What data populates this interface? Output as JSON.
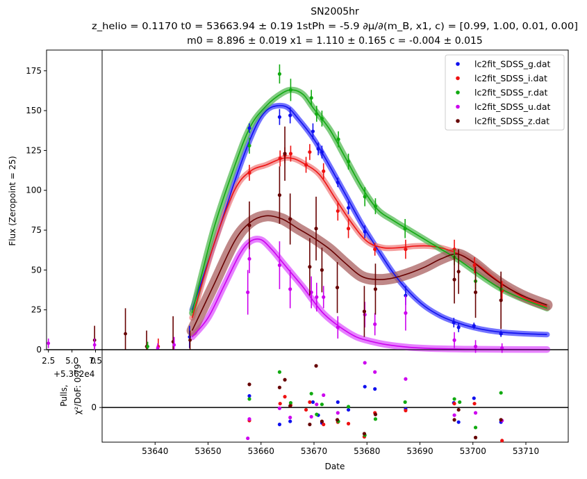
{
  "chart_data": {
    "type": "scatter",
    "title": {
      "line1": "SN2005hr",
      "line2": "z_helio = 0.1170  t0 = 53663.94 ± 0.19  1stPh = -5.9  ∂μ/∂(m_B, x1, c) = [0.99, 1.00, 0.01, 0.00]",
      "line3": "m0 = 8.896 ± 0.019  x1 = 1.110 ± 0.165  c = -0.004 ± 0.015"
    },
    "xlabel": "Date",
    "ylabel": "Flux (Zeropoint = 25)",
    "pulls_ylabel": "Pulls,",
    "pulls_ylabel2": "χ²/DoF: 0.79",
    "xlim": [
      53630,
      53718
    ],
    "ylim": [
      0,
      188
    ],
    "pulls_ylim": [
      -4.5,
      7.5
    ],
    "x_ticks": [
      53640,
      53650,
      53660,
      53670,
      53680,
      53690,
      53700,
      53710
    ],
    "y_ticks": [
      0,
      25,
      50,
      75,
      100,
      125,
      150,
      175
    ],
    "pulls_y_ticks": [
      0
    ],
    "inset": {
      "xlim": [
        2.3,
        8.2
      ],
      "x_ticks": [
        2.5,
        5.0,
        7.5
      ],
      "x_tick_labels": [
        "2.5",
        "5.0",
        "7.5"
      ],
      "offset_label": "+5.362e4",
      "pulls_tick_label": "0"
    },
    "legend_position": "top-right",
    "series": [
      {
        "name": "lc2fit_SDSS_g.dat",
        "color": "#1010ee",
        "band": "#4444ff",
        "model": [
          [
            53647,
            25
          ],
          [
            53652,
            75
          ],
          [
            53656,
            115
          ],
          [
            53659,
            140
          ],
          [
            53661,
            150
          ],
          [
            53663,
            153
          ],
          [
            53665,
            152
          ],
          [
            53667,
            145
          ],
          [
            53670,
            132
          ],
          [
            53673,
            115
          ],
          [
            53676,
            97
          ],
          [
            53679,
            79
          ],
          [
            53682,
            63
          ],
          [
            53685,
            48
          ],
          [
            53688,
            36
          ],
          [
            53691,
            27
          ],
          [
            53694,
            21
          ],
          [
            53697,
            17
          ],
          [
            53700,
            14
          ],
          [
            53703,
            12
          ],
          [
            53706,
            10.8
          ],
          [
            53710,
            10
          ],
          [
            53714,
            9.5
          ]
        ],
        "points": [
          [
            53657.8,
            139,
            3
          ],
          [
            53663.5,
            146,
            5
          ],
          [
            53665.5,
            147,
            5
          ],
          [
            53669.8,
            137,
            5
          ],
          [
            53670.8,
            126,
            4
          ],
          [
            53671.5,
            124,
            4
          ],
          [
            53674.5,
            105,
            3
          ],
          [
            53676.5,
            89,
            4
          ],
          [
            53679.6,
            74,
            4
          ],
          [
            53687.3,
            34,
            6
          ],
          [
            53696.4,
            17,
            3
          ],
          [
            53697.3,
            14,
            3
          ],
          [
            53700.2,
            15,
            2
          ],
          [
            53705.3,
            10,
            2
          ]
        ],
        "pulls": [
          [
            53657.8,
            1.5
          ],
          [
            53663.5,
            -2.2
          ],
          [
            53665.5,
            -1.8
          ],
          [
            53669.8,
            0.7
          ],
          [
            53670.8,
            -1.0
          ],
          [
            53671.5,
            -2.0
          ],
          [
            53674.5,
            0.7
          ],
          [
            53676.5,
            -0.3
          ],
          [
            53679.6,
            2.7
          ],
          [
            53681.5,
            2.4
          ],
          [
            53687.3,
            -0.2
          ],
          [
            53696.4,
            0.6
          ],
          [
            53697.3,
            -1.9
          ],
          [
            53700.2,
            1.2
          ],
          [
            53705.3,
            -1.9
          ]
        ]
      },
      {
        "name": "lc2fit_SDSS_i.dat",
        "color": "#ee1111",
        "band": "#f08080",
        "model": [
          [
            53647,
            20
          ],
          [
            53651,
            65
          ],
          [
            53655,
            100
          ],
          [
            53658,
            112
          ],
          [
            53661,
            116
          ],
          [
            53664,
            120
          ],
          [
            53666,
            120
          ],
          [
            53668,
            117
          ],
          [
            53671,
            110
          ],
          [
            53674,
            95
          ],
          [
            53677,
            80
          ],
          [
            53680,
            68
          ],
          [
            53683,
            64
          ],
          [
            53686,
            64
          ],
          [
            53689,
            65
          ],
          [
            53692,
            65
          ],
          [
            53695,
            63
          ],
          [
            53698,
            59
          ],
          [
            53701,
            53
          ],
          [
            53704,
            45
          ],
          [
            53707,
            38
          ],
          [
            53710,
            32
          ],
          [
            53714,
            27
          ]
        ],
        "points": [
          [
            53657.8,
            111,
            5
          ],
          [
            53663.6,
            120,
            5
          ],
          [
            53664.5,
            122,
            5
          ],
          [
            53665.6,
            123,
            5
          ],
          [
            53668.5,
            116,
            5
          ],
          [
            53669.2,
            124,
            5
          ],
          [
            53671.8,
            112,
            5
          ],
          [
            53674.5,
            87,
            6
          ],
          [
            53676.5,
            76,
            6
          ],
          [
            53681.5,
            63,
            4
          ],
          [
            53687.3,
            63,
            6
          ],
          [
            53696.5,
            63,
            6
          ],
          [
            53700.3,
            53,
            5
          ],
          [
            53705.5,
            37,
            6
          ]
        ],
        "pulls": [
          [
            53657.8,
            -1.7
          ],
          [
            53663.6,
            0.5
          ],
          [
            53664.5,
            1.4
          ],
          [
            53665.6,
            0.3
          ],
          [
            53668.5,
            -0.3
          ],
          [
            53669.2,
            0.7
          ],
          [
            53671.8,
            -2.2
          ],
          [
            53674.5,
            -1.9
          ],
          [
            53676.5,
            -2.1
          ],
          [
            53679.5,
            -3.8
          ],
          [
            53681.5,
            -0.7
          ],
          [
            53687.3,
            -0.4
          ],
          [
            53696.5,
            0.5
          ],
          [
            53700.3,
            0.5
          ],
          [
            53705.5,
            -4.3
          ]
        ]
      },
      {
        "name": "lc2fit_SDSS_r.dat",
        "color": "#11aa11",
        "band": "#55bb55",
        "model": [
          [
            53647,
            23
          ],
          [
            53651,
            75
          ],
          [
            53655,
            115
          ],
          [
            53658,
            140
          ],
          [
            53661,
            153
          ],
          [
            53664,
            161
          ],
          [
            53666,
            163
          ],
          [
            53668,
            160
          ],
          [
            53670,
            151
          ],
          [
            53673,
            138
          ],
          [
            53676,
            120
          ],
          [
            53679,
            102
          ],
          [
            53682,
            88
          ],
          [
            53685,
            81
          ],
          [
            53688,
            75
          ],
          [
            53691,
            69
          ],
          [
            53694,
            63
          ],
          [
            53697,
            57
          ],
          [
            53700,
            50
          ],
          [
            53703,
            43
          ],
          [
            53706,
            37
          ],
          [
            53710,
            31
          ],
          [
            53714,
            26
          ]
        ],
        "points": [
          [
            53657.8,
            128,
            5
          ],
          [
            53663.5,
            173,
            6
          ],
          [
            53665.6,
            163,
            7
          ],
          [
            53669.5,
            158,
            5
          ],
          [
            53670.5,
            148,
            5
          ],
          [
            53671.5,
            145,
            5
          ],
          [
            53674.6,
            132,
            5
          ],
          [
            53676.5,
            118,
            5
          ],
          [
            53679.6,
            96,
            6
          ],
          [
            53681.6,
            90,
            5
          ],
          [
            53687.2,
            76,
            6
          ],
          [
            53696.5,
            58,
            5
          ],
          [
            53700.5,
            43,
            5
          ],
          [
            53705.3,
            38,
            5
          ]
        ],
        "pulls": [
          [
            53657.8,
            1.1
          ],
          [
            53663.5,
            4.6
          ],
          [
            53665.6,
            0.6
          ],
          [
            53669.5,
            1.8
          ],
          [
            53670.5,
            -0.9
          ],
          [
            53671.5,
            0.4
          ],
          [
            53674.6,
            -1.8
          ],
          [
            53676.5,
            0.1
          ],
          [
            53679.6,
            -3.6
          ],
          [
            53681.6,
            -1.5
          ],
          [
            53687.2,
            0.7
          ],
          [
            53696.5,
            1.1
          ],
          [
            53697.5,
            0.7
          ],
          [
            53700.5,
            -2.6
          ],
          [
            53705.3,
            1.9
          ]
        ]
      },
      {
        "name": "lc2fit_SDSS_u.dat",
        "color": "#cc00ee",
        "band": "#dd55ff",
        "model": [
          [
            53647,
            8
          ],
          [
            53650,
            20
          ],
          [
            53653,
            40
          ],
          [
            53656,
            60
          ],
          [
            53658,
            68
          ],
          [
            53660,
            69
          ],
          [
            53662,
            63
          ],
          [
            53664,
            55
          ],
          [
            53666,
            47
          ],
          [
            53668,
            39
          ],
          [
            53670,
            30
          ],
          [
            53672,
            22
          ],
          [
            53675,
            14
          ],
          [
            53678,
            8
          ],
          [
            53681,
            5
          ],
          [
            53684,
            3
          ],
          [
            53688,
            1.5
          ],
          [
            53692,
            0.8
          ],
          [
            53700,
            0.3
          ],
          [
            53714,
            0.1
          ]
        ],
        "points": [
          [
            53657.5,
            36,
            14
          ],
          [
            53657.8,
            57,
            9
          ],
          [
            53663.5,
            53,
            15
          ],
          [
            53665.5,
            38,
            12
          ],
          [
            53669.5,
            36,
            10
          ],
          [
            53670.5,
            33,
            9
          ],
          [
            53671.8,
            33,
            7
          ],
          [
            53674.5,
            14,
            7
          ],
          [
            53679.6,
            22,
            8
          ],
          [
            53681.5,
            16,
            7
          ],
          [
            53687.3,
            23,
            11
          ],
          [
            53696.5,
            6,
            5
          ],
          [
            53700.5,
            2,
            4
          ],
          [
            53705.5,
            1,
            3
          ]
        ],
        "pulls": [
          [
            53657.5,
            -4.0
          ],
          [
            53657.8,
            -1.5
          ],
          [
            53663.5,
            -0.1
          ],
          [
            53665.5,
            -1.3
          ],
          [
            53669.5,
            -1.2
          ],
          [
            53670.5,
            0.4
          ],
          [
            53671.8,
            1.6
          ],
          [
            53674.5,
            -0.7
          ],
          [
            53679.6,
            5.8
          ],
          [
            53681.5,
            4.6
          ],
          [
            53687.3,
            3.7
          ],
          [
            53696.5,
            -1.0
          ],
          [
            53700.5,
            -0.7
          ],
          [
            53705.5,
            -1.7
          ]
        ]
      },
      {
        "name": "lc2fit_SDSS_z.dat",
        "color": "#660000",
        "band": "#aa6060",
        "model": [
          [
            53647,
            12
          ],
          [
            53651,
            40
          ],
          [
            53655,
            68
          ],
          [
            53658,
            80
          ],
          [
            53661,
            84
          ],
          [
            53664,
            82
          ],
          [
            53667,
            76
          ],
          [
            53670,
            70
          ],
          [
            53673,
            63
          ],
          [
            53676,
            54
          ],
          [
            53679,
            46
          ],
          [
            53682,
            44
          ],
          [
            53685,
            45
          ],
          [
            53688,
            48
          ],
          [
            53691,
            52
          ],
          [
            53694,
            57
          ],
          [
            53697,
            60
          ],
          [
            53700,
            55
          ],
          [
            53703,
            47
          ],
          [
            53706,
            40
          ],
          [
            53710,
            33
          ],
          [
            53714,
            28
          ]
        ],
        "points": [
          [
            53657.8,
            78,
            15
          ],
          [
            53663.5,
            97,
            18
          ],
          [
            53664.5,
            123,
            17
          ],
          [
            53665.5,
            82,
            16
          ],
          [
            53669.2,
            52,
            18
          ],
          [
            53670.4,
            76,
            20
          ],
          [
            53671.5,
            50,
            14
          ],
          [
            53674.4,
            39,
            16
          ],
          [
            53679.5,
            24,
            16
          ],
          [
            53681.6,
            38,
            16
          ],
          [
            53696.5,
            44,
            15
          ],
          [
            53697.3,
            49,
            14
          ],
          [
            53700.5,
            36,
            16
          ],
          [
            53705.3,
            31,
            18
          ]
        ],
        "pulls": [
          [
            53657.8,
            3.0
          ],
          [
            53663.5,
            2.6
          ],
          [
            53664.5,
            3.6
          ],
          [
            53665.5,
            0.2
          ],
          [
            53669.2,
            -2.2
          ],
          [
            53670.4,
            5.4
          ],
          [
            53671.5,
            -1.8
          ],
          [
            53674.4,
            -1.6
          ],
          [
            53679.5,
            -3.4
          ],
          [
            53681.6,
            -0.9
          ],
          [
            53696.5,
            -1.6
          ],
          [
            53697.3,
            -0.3
          ],
          [
            53700.5,
            -3.9
          ],
          [
            53705.3,
            -1.6
          ]
        ]
      }
    ],
    "inset_points": [
      {
        "x": 2.5,
        "y": 4,
        "err": 3,
        "color": "#cc00ee",
        "pull": 0
      },
      {
        "x": 7.4,
        "y": 6,
        "err": 9,
        "color": "#660000",
        "pull": 0
      },
      {
        "x": 7.4,
        "y": 3,
        "err": 4,
        "color": "#cc00ee",
        "pull": 0
      }
    ],
    "early_points": [
      {
        "x": 53634.4,
        "y": 10,
        "err": 16,
        "color": "#660000"
      },
      {
        "x": 53638.4,
        "y": 2,
        "err": 10,
        "color": "#660000"
      },
      {
        "x": 53638.6,
        "y": 2,
        "err": 3,
        "color": "#11aa11"
      },
      {
        "x": 53640.6,
        "y": 2,
        "err": 5,
        "color": "#ee1111"
      },
      {
        "x": 53640.5,
        "y": 1,
        "err": 3,
        "color": "#cc00ee"
      },
      {
        "x": 53643.4,
        "y": 5,
        "err": 16,
        "color": "#660000"
      },
      {
        "x": 53643.6,
        "y": 3,
        "err": 5,
        "color": "#cc00ee"
      },
      {
        "x": 53646.5,
        "y": 8,
        "err": 7,
        "color": "#1010ee"
      },
      {
        "x": 53646.6,
        "y": 6,
        "err": 6,
        "color": "#660000"
      }
    ]
  }
}
